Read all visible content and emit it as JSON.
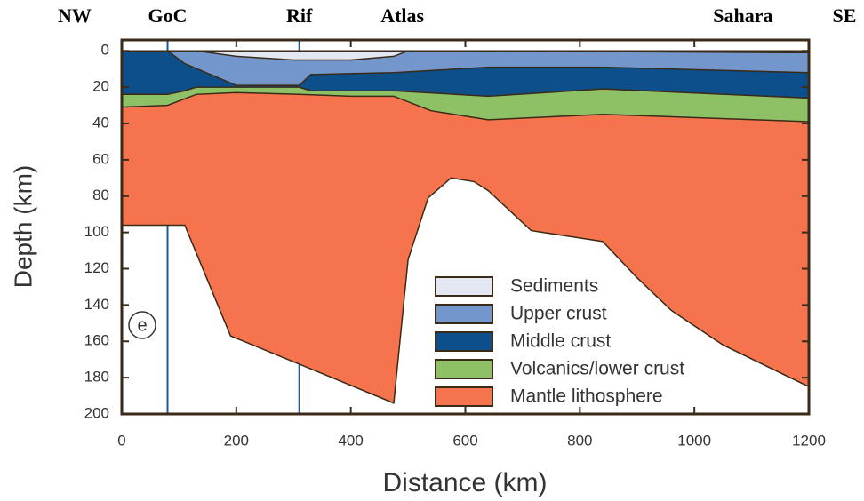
{
  "chart_data": {
    "type": "cross-section",
    "ends": [
      "NW",
      "SE"
    ],
    "section_labels": [
      {
        "text": "GoC",
        "x": 80
      },
      {
        "text": "Rif",
        "x": 310
      },
      {
        "text": "Atlas",
        "x": 490
      },
      {
        "text": "Sahara",
        "x": 1085
      }
    ],
    "reference_lines": [
      80,
      310
    ],
    "panel_label": "e",
    "xlabel": "Distance (km)",
    "ylabel": "Depth (km)",
    "xlim": [
      0,
      1200
    ],
    "ylim": [
      -6,
      200
    ],
    "xticks": [
      0,
      200,
      400,
      600,
      800,
      1000,
      1200
    ],
    "yticks": [
      0,
      20,
      40,
      60,
      80,
      100,
      120,
      140,
      160,
      180,
      200
    ],
    "boundaries": [
      {
        "x": [
          0,
          1200
        ],
        "y": [
          0,
          0
        ]
      },
      {
        "x": [
          0,
          130,
          200,
          300,
          400,
          475,
          500,
          600,
          1200
        ],
        "y": [
          0,
          0,
          3,
          5,
          5,
          3,
          0,
          0,
          1
        ]
      },
      {
        "x": [
          0,
          80,
          110,
          200,
          310,
          330,
          475,
          640,
          840,
          1200
        ],
        "y": [
          0,
          0,
          7,
          19,
          19,
          13,
          12,
          9,
          9,
          12
        ]
      },
      {
        "x": [
          0,
          80,
          110,
          130,
          310,
          330,
          475,
          640,
          840,
          1200
        ],
        "y": [
          24,
          24,
          22,
          20,
          20,
          22,
          22,
          25,
          21,
          26
        ]
      },
      {
        "x": [
          0,
          80,
          130,
          200,
          310,
          400,
          475,
          540,
          640,
          840,
          1200
        ],
        "y": [
          31,
          30,
          24,
          23,
          24,
          25,
          25,
          33,
          38,
          35,
          39
        ]
      },
      {
        "x": [
          0,
          110,
          190,
          475,
          500,
          535,
          575,
          615,
          640,
          715,
          840,
          900,
          960,
          1050,
          1200
        ],
        "y": [
          96,
          96,
          157,
          194,
          115,
          81,
          70,
          72,
          77,
          99,
          105,
          125,
          143,
          162,
          185
        ]
      }
    ],
    "series": [
      {
        "name": "Sediments",
        "color": "#e3e7f1"
      },
      {
        "name": "Upper crust",
        "color": "#7397cc"
      },
      {
        "name": "Middle crust",
        "color": "#0d4f8b"
      },
      {
        "name": "Volcanics/lower crust",
        "color": "#8ec165"
      },
      {
        "name": "Mantle lithosphere",
        "color": "#f6744d"
      }
    ]
  }
}
